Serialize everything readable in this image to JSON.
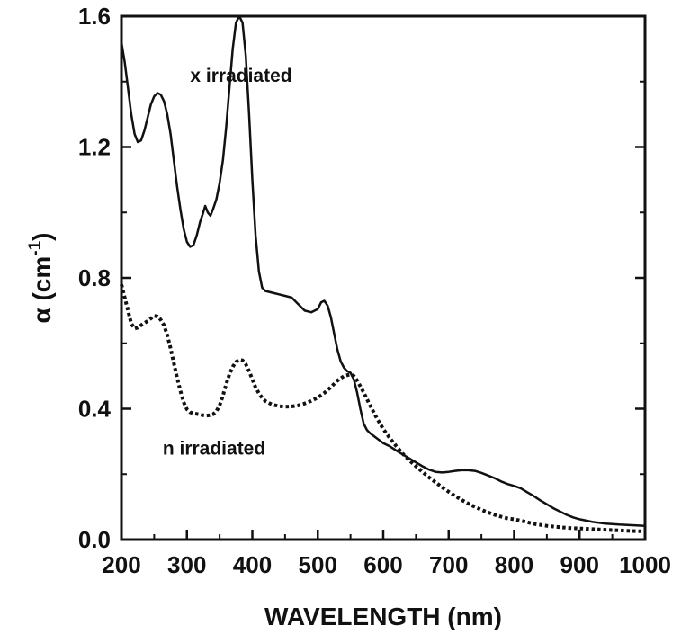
{
  "chart_data": {
    "type": "line",
    "title": "",
    "xlabel": "WAVELENGTH (nm)",
    "ylabel_main": "α (cm",
    "ylabel_sup": "-1",
    "ylabel_close": ")",
    "xlim": [
      200,
      1000
    ],
    "ylim": [
      0.0,
      1.6
    ],
    "x_ticks": [
      200,
      300,
      400,
      500,
      600,
      700,
      800,
      900,
      1000
    ],
    "x_tick_labels": [
      "200",
      "300",
      "400",
      "500",
      "600",
      "700",
      "800",
      "900",
      "1000"
    ],
    "y_ticks": [
      0.0,
      0.4,
      0.8,
      1.2,
      1.6
    ],
    "y_tick_labels": [
      "0.0",
      "0.4",
      "0.8",
      "1.2",
      "1.6"
    ],
    "grid": false,
    "series": [
      {
        "name": "x irradiated",
        "style": "solid",
        "color": "#111111",
        "points": [
          [
            200,
            1.52
          ],
          [
            205,
            1.46
          ],
          [
            210,
            1.38
          ],
          [
            215,
            1.3
          ],
          [
            220,
            1.24
          ],
          [
            225,
            1.215
          ],
          [
            230,
            1.22
          ],
          [
            235,
            1.25
          ],
          [
            240,
            1.29
          ],
          [
            245,
            1.33
          ],
          [
            250,
            1.355
          ],
          [
            255,
            1.365
          ],
          [
            260,
            1.36
          ],
          [
            265,
            1.34
          ],
          [
            270,
            1.3
          ],
          [
            275,
            1.24
          ],
          [
            280,
            1.16
          ],
          [
            285,
            1.08
          ],
          [
            290,
            1.01
          ],
          [
            295,
            0.95
          ],
          [
            300,
            0.91
          ],
          [
            305,
            0.895
          ],
          [
            310,
            0.9
          ],
          [
            315,
            0.93
          ],
          [
            320,
            0.97
          ],
          [
            325,
            1.0
          ],
          [
            328,
            1.02
          ],
          [
            332,
            1.0
          ],
          [
            336,
            0.99
          ],
          [
            340,
            1.01
          ],
          [
            345,
            1.04
          ],
          [
            350,
            1.09
          ],
          [
            355,
            1.16
          ],
          [
            360,
            1.26
          ],
          [
            365,
            1.38
          ],
          [
            370,
            1.5
          ],
          [
            375,
            1.58
          ],
          [
            380,
            1.6
          ],
          [
            385,
            1.58
          ],
          [
            390,
            1.48
          ],
          [
            395,
            1.3
          ],
          [
            400,
            1.1
          ],
          [
            405,
            0.93
          ],
          [
            410,
            0.82
          ],
          [
            415,
            0.77
          ],
          [
            420,
            0.76
          ],
          [
            430,
            0.755
          ],
          [
            440,
            0.75
          ],
          [
            450,
            0.745
          ],
          [
            460,
            0.74
          ],
          [
            470,
            0.72
          ],
          [
            480,
            0.7
          ],
          [
            490,
            0.695
          ],
          [
            500,
            0.705
          ],
          [
            505,
            0.725
          ],
          [
            510,
            0.73
          ],
          [
            515,
            0.715
          ],
          [
            520,
            0.68
          ],
          [
            525,
            0.63
          ],
          [
            530,
            0.58
          ],
          [
            535,
            0.545
          ],
          [
            540,
            0.525
          ],
          [
            545,
            0.515
          ],
          [
            550,
            0.51
          ],
          [
            555,
            0.49
          ],
          [
            560,
            0.45
          ],
          [
            565,
            0.4
          ],
          [
            570,
            0.355
          ],
          [
            575,
            0.335
          ],
          [
            580,
            0.325
          ],
          [
            590,
            0.31
          ],
          [
            600,
            0.295
          ],
          [
            610,
            0.285
          ],
          [
            620,
            0.272
          ],
          [
            630,
            0.26
          ],
          [
            640,
            0.248
          ],
          [
            650,
            0.236
          ],
          [
            660,
            0.224
          ],
          [
            670,
            0.214
          ],
          [
            680,
            0.207
          ],
          [
            690,
            0.205
          ],
          [
            700,
            0.207
          ],
          [
            710,
            0.21
          ],
          [
            720,
            0.212
          ],
          [
            730,
            0.212
          ],
          [
            740,
            0.21
          ],
          [
            750,
            0.204
          ],
          [
            760,
            0.196
          ],
          [
            770,
            0.188
          ],
          [
            780,
            0.178
          ],
          [
            790,
            0.17
          ],
          [
            800,
            0.164
          ],
          [
            810,
            0.157
          ],
          [
            820,
            0.145
          ],
          [
            830,
            0.133
          ],
          [
            840,
            0.12
          ],
          [
            850,
            0.108
          ],
          [
            860,
            0.096
          ],
          [
            870,
            0.086
          ],
          [
            880,
            0.076
          ],
          [
            890,
            0.068
          ],
          [
            900,
            0.062
          ],
          [
            920,
            0.054
          ],
          [
            940,
            0.049
          ],
          [
            960,
            0.046
          ],
          [
            980,
            0.044
          ],
          [
            1000,
            0.042
          ]
        ]
      },
      {
        "name": "n irradiated",
        "style": "dotted",
        "color": "#111111",
        "points": [
          [
            200,
            0.78
          ],
          [
            205,
            0.74
          ],
          [
            210,
            0.7
          ],
          [
            215,
            0.66
          ],
          [
            220,
            0.645
          ],
          [
            225,
            0.648
          ],
          [
            230,
            0.655
          ],
          [
            235,
            0.662
          ],
          [
            240,
            0.668
          ],
          [
            245,
            0.676
          ],
          [
            250,
            0.684
          ],
          [
            255,
            0.682
          ],
          [
            260,
            0.672
          ],
          [
            265,
            0.655
          ],
          [
            270,
            0.625
          ],
          [
            275,
            0.585
          ],
          [
            280,
            0.54
          ],
          [
            285,
            0.495
          ],
          [
            290,
            0.455
          ],
          [
            295,
            0.42
          ],
          [
            300,
            0.398
          ],
          [
            305,
            0.389
          ],
          [
            310,
            0.386
          ],
          [
            315,
            0.384
          ],
          [
            320,
            0.382
          ],
          [
            325,
            0.38
          ],
          [
            330,
            0.379
          ],
          [
            335,
            0.38
          ],
          [
            340,
            0.383
          ],
          [
            345,
            0.392
          ],
          [
            350,
            0.41
          ],
          [
            355,
            0.44
          ],
          [
            360,
            0.475
          ],
          [
            365,
            0.505
          ],
          [
            370,
            0.528
          ],
          [
            375,
            0.543
          ],
          [
            380,
            0.55
          ],
          [
            385,
            0.548
          ],
          [
            390,
            0.536
          ],
          [
            395,
            0.515
          ],
          [
            400,
            0.49
          ],
          [
            405,
            0.465
          ],
          [
            410,
            0.447
          ],
          [
            415,
            0.433
          ],
          [
            420,
            0.423
          ],
          [
            430,
            0.413
          ],
          [
            440,
            0.408
          ],
          [
            450,
            0.406
          ],
          [
            460,
            0.407
          ],
          [
            470,
            0.41
          ],
          [
            480,
            0.416
          ],
          [
            490,
            0.424
          ],
          [
            500,
            0.434
          ],
          [
            510,
            0.448
          ],
          [
            520,
            0.466
          ],
          [
            530,
            0.486
          ],
          [
            540,
            0.5
          ],
          [
            550,
            0.505
          ],
          [
            555,
            0.5
          ],
          [
            560,
            0.487
          ],
          [
            570,
            0.45
          ],
          [
            580,
            0.41
          ],
          [
            590,
            0.372
          ],
          [
            600,
            0.338
          ],
          [
            610,
            0.31
          ],
          [
            620,
            0.285
          ],
          [
            630,
            0.262
          ],
          [
            640,
            0.242
          ],
          [
            650,
            0.224
          ],
          [
            660,
            0.207
          ],
          [
            670,
            0.19
          ],
          [
            680,
            0.175
          ],
          [
            690,
            0.16
          ],
          [
            700,
            0.146
          ],
          [
            710,
            0.133
          ],
          [
            720,
            0.121
          ],
          [
            730,
            0.11
          ],
          [
            740,
            0.1
          ],
          [
            750,
            0.091
          ],
          [
            760,
            0.083
          ],
          [
            770,
            0.076
          ],
          [
            780,
            0.07
          ],
          [
            790,
            0.065
          ],
          [
            800,
            0.062
          ],
          [
            810,
            0.058
          ],
          [
            820,
            0.053
          ],
          [
            830,
            0.048
          ],
          [
            840,
            0.045
          ],
          [
            850,
            0.042
          ],
          [
            860,
            0.04
          ],
          [
            870,
            0.038
          ],
          [
            880,
            0.036
          ],
          [
            890,
            0.035
          ],
          [
            900,
            0.034
          ],
          [
            920,
            0.032
          ],
          [
            940,
            0.03
          ],
          [
            960,
            0.028
          ],
          [
            980,
            0.026
          ],
          [
            1000,
            0.025
          ]
        ]
      }
    ],
    "annotations": [
      {
        "text": "x irradiated",
        "x": 305,
        "y": 1.4
      },
      {
        "text": "n irradiated",
        "x": 263,
        "y": 0.26
      }
    ]
  }
}
